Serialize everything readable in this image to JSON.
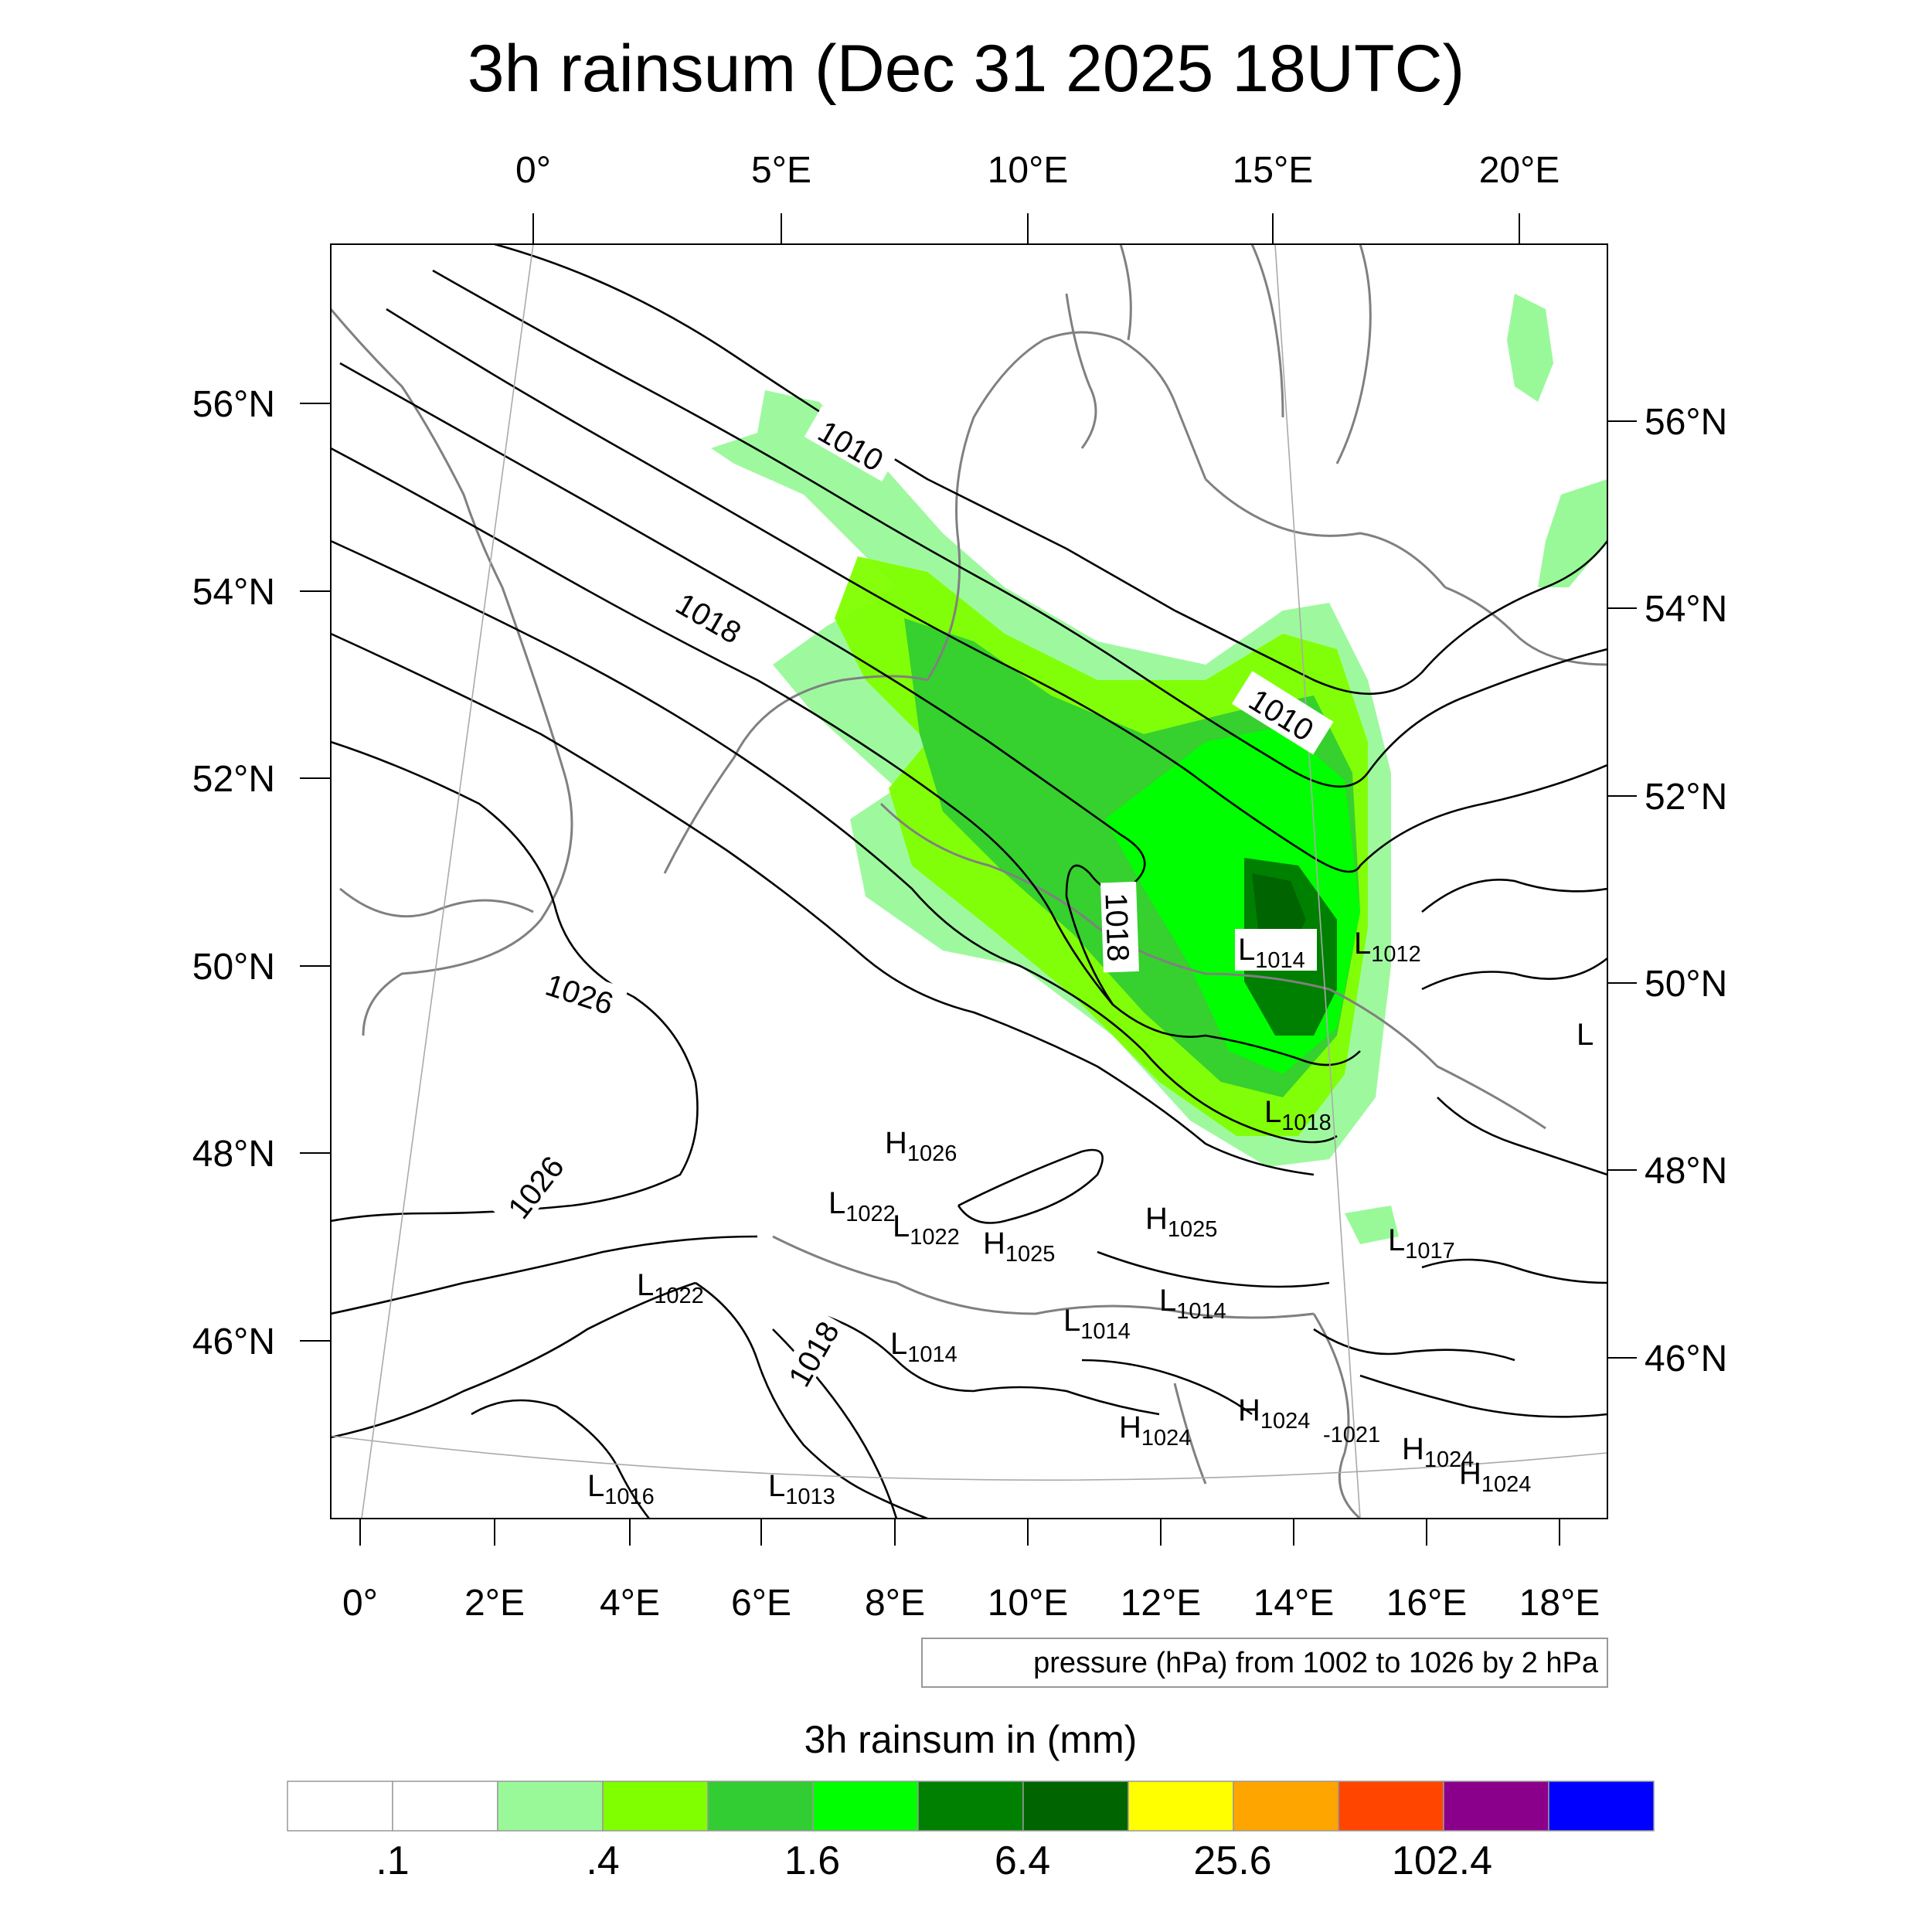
{
  "title": "3h rainsum (Dec 31 2025 18UTC)",
  "axes": {
    "top_lon_labels": [
      "0°",
      "5°E",
      "10°E",
      "15°E",
      "20°E"
    ],
    "bottom_lon_labels": [
      "0°",
      "2°E",
      "4°E",
      "6°E",
      "8°E",
      "10°E",
      "12°E",
      "14°E",
      "16°E",
      "18°E"
    ],
    "left_lat_labels": [
      "56°N",
      "54°N",
      "52°N",
      "50°N",
      "48°N",
      "46°N"
    ],
    "right_lat_labels": [
      "56°N",
      "54°N",
      "52°N",
      "50°N",
      "48°N",
      "46°N"
    ]
  },
  "isobar_labels": {
    "l1010a": "1010",
    "l1010b": "1010",
    "l1018a": "1018",
    "l1018b": "1018",
    "l1026a": "1026",
    "l1026b": "1026",
    "l1018c": "1018",
    "l1021": "-1021"
  },
  "pressure_centers": [
    {
      "letter": "L",
      "value": "1014"
    },
    {
      "letter": "L",
      "value": "1012"
    },
    {
      "letter": "L",
      "value": "1018"
    },
    {
      "letter": "H",
      "value": "1026"
    },
    {
      "letter": "L",
      "value": "1022"
    },
    {
      "letter": "L",
      "value": "1022"
    },
    {
      "letter": "H",
      "value": "1025"
    },
    {
      "letter": "H",
      "value": "1025"
    },
    {
      "letter": "L",
      "value": "1017"
    },
    {
      "letter": "L",
      "value": "1022"
    },
    {
      "letter": "L",
      "value": "1014"
    },
    {
      "letter": "L",
      "value": "1014"
    },
    {
      "letter": "L",
      "value": "1014"
    },
    {
      "letter": "H",
      "value": "1024"
    },
    {
      "letter": "H",
      "value": "1024"
    },
    {
      "letter": "H",
      "value": "1024"
    },
    {
      "letter": "H",
      "value": "1024"
    },
    {
      "letter": "L",
      "value": "1016"
    },
    {
      "letter": "L",
      "value": "1013"
    },
    {
      "letter": "L",
      "value": ""
    }
  ],
  "contour_note": "pressure (hPa) from 1002 to 1026 by 2 hPa",
  "colorbar": {
    "title": "3h rainsum in (mm)",
    "labels": [
      ".1",
      ".4",
      "1.6",
      "6.4",
      "25.6",
      "102.4"
    ],
    "colors": [
      "#ffffff",
      "#ffffff",
      "#99f999",
      "#80ff00",
      "#32cd32",
      "#00ff00",
      "#008000",
      "#006400",
      "#ffff00",
      "#ffa500",
      "#ff4500",
      "#8b008b",
      "#0000ff"
    ]
  },
  "colors": {
    "coastline": "#808080",
    "isobar": "#000000",
    "graticule": "#aaaaaa"
  }
}
